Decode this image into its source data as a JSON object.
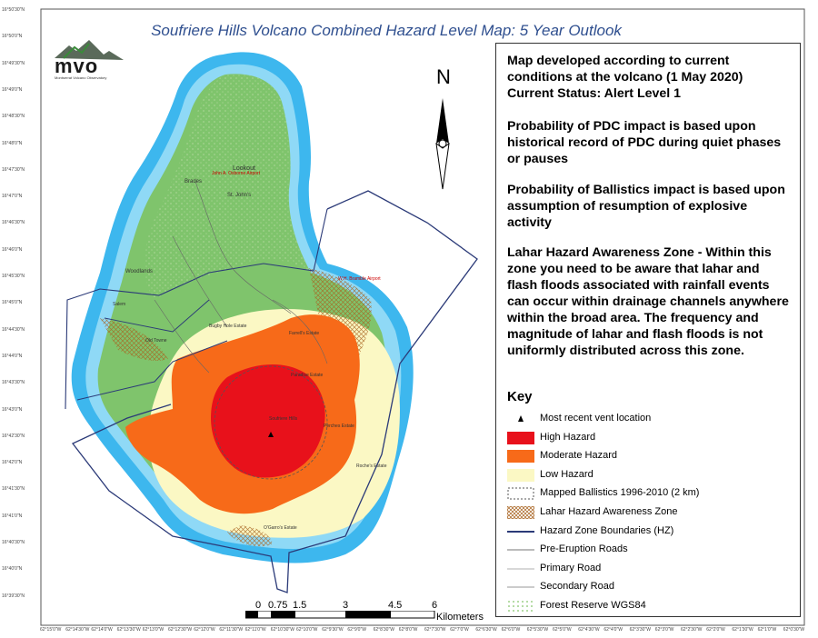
{
  "title": "Soufriere Hills Volcano Combined Hazard Level Map: 5 Year Outlook",
  "logo": {
    "text": "mvo",
    "subtitle": "Montserrat Volcano Observatory"
  },
  "north_arrow": {
    "label": "N"
  },
  "info": {
    "p1": "Map developed according to current conditions at the volcano (1 May 2020) Current Status: Alert Level 1",
    "p2": "Probability of PDC impact is based upon historical record of PDC during quiet phases or pauses",
    "p3": "Probability of Ballistics impact is based upon assumption of resumption of explosive activity",
    "p4": "Lahar Hazard Awareness Zone - Within this zone you need to be aware that lahar and flash floods associated with rainfall events can occur within drainage channels anywhere within the broad area. The frequency and magnitude of lahar and flash floods is not uniformly distributed across this zone."
  },
  "key": {
    "title": "Key",
    "items": [
      {
        "label": "Most recent vent location",
        "icon": "triangle-icon"
      },
      {
        "label": "High Hazard",
        "color": "#e8111b"
      },
      {
        "label": "Moderate Hazard",
        "color": "#f76a19"
      },
      {
        "label": "Low Hazard",
        "color": "#fbf8c4"
      },
      {
        "label": "Mapped Ballistics 1996-2010 (2 km)",
        "icon": "dashed-circle-icon"
      },
      {
        "label": "Lahar Hazard Awareness Zone",
        "icon": "crosshatch-icon"
      },
      {
        "label": "Hazard Zone Boundaries (HZ)",
        "color": "#2b3a78"
      },
      {
        "label": "Pre-Eruption Roads",
        "color": "#777777"
      },
      {
        "label": "Primary Road",
        "color": "#b0b0b0"
      },
      {
        "label": "Secondary Road",
        "color": "#999999"
      },
      {
        "label": "Forest Reserve WGS84",
        "icon": "forest-pattern-icon"
      }
    ]
  },
  "scale": {
    "ticks": [
      "0",
      "0.75",
      "1.5",
      "3",
      "4.5",
      "6"
    ],
    "unit": "Kilometers"
  },
  "lat_labels": [
    "16°50'30\"N",
    "16°50'0\"N",
    "16°49'30\"N",
    "16°49'0\"N",
    "16°48'30\"N",
    "16°48'0\"N",
    "16°47'30\"N",
    "16°47'0\"N",
    "16°46'30\"N",
    "16°46'0\"N",
    "16°45'30\"N",
    "16°45'0\"N",
    "16°44'30\"N",
    "16°44'0\"N",
    "16°43'30\"N",
    "16°43'0\"N",
    "16°42'30\"N",
    "16°42'0\"N",
    "16°41'30\"N",
    "16°41'0\"N",
    "16°40'30\"N",
    "16°40'0\"N",
    "16°39'30\"N"
  ],
  "lon_labels": [
    "62°15'0\"W",
    "62°14'30\"W",
    "62°14'0\"W",
    "62°13'30\"W",
    "62°13'0\"W",
    "62°12'30\"W",
    "62°12'0\"W",
    "62°11'30\"W",
    "62°11'0\"W",
    "62°10'30\"W",
    "62°10'0\"W",
    "62°9'30\"W",
    "62°9'0\"W",
    "62°8'30\"W",
    "62°8'0\"W",
    "62°7'30\"W",
    "62°7'0\"W",
    "62°6'30\"W",
    "62°6'0\"W",
    "62°5'30\"W",
    "62°5'0\"W",
    "62°4'30\"W",
    "62°4'0\"W",
    "62°3'30\"W",
    "62°3'0\"W",
    "62°2'30\"W",
    "62°2'0\"W",
    "62°1'30\"W",
    "62°1'0\"W",
    "62°0'30\"W"
  ],
  "places": {
    "jao": "John A. Osborne Airport",
    "lookout": "Lookout",
    "brades": "Brades",
    "st_johns": "St. John's",
    "woodlands": "Woodlands",
    "salem": "Salem",
    "old_towne": "Old Towne",
    "bugby_hole": "Bugby Hole Estate",
    "farrells": "Farrell's Estate",
    "paradise": "Paradise Estate",
    "soufriere": "Soufriere Hills",
    "perches": "Perches Estate",
    "roches": "Roche's Estate",
    "ogarros": "O'Garro's Estate",
    "wh_bramble": "W.H. Bramble Airport"
  }
}
